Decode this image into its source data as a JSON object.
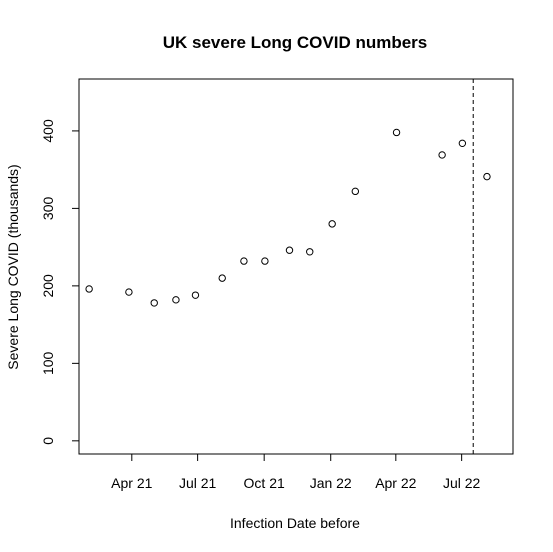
{
  "chart_data": {
    "type": "scatter",
    "title": "UK severe Long COVID numbers",
    "xlabel": "Infection Date before",
    "ylabel": "Severe Long COVID (thousands)",
    "x_tick_labels": [
      {
        "date": "2021-04-01",
        "label": "Apr 21"
      },
      {
        "date": "2021-07-01",
        "label": "Jul 21"
      },
      {
        "date": "2021-10-01",
        "label": "Oct 21"
      },
      {
        "date": "2022-01-01",
        "label": "Jan 22"
      },
      {
        "date": "2022-04-01",
        "label": "Apr 22"
      },
      {
        "date": "2022-07-01",
        "label": "Jul 22"
      }
    ],
    "y_ticks": [
      0,
      100,
      200,
      300,
      400
    ],
    "xlim": [
      "2021-01-18",
      "2022-09-10"
    ],
    "ylim": [
      -17,
      467
    ],
    "grid": false,
    "marker": "open-circle",
    "points": [
      {
        "x": "2021-02-01",
        "y": 196
      },
      {
        "x": "2021-03-28",
        "y": 192
      },
      {
        "x": "2021-05-02",
        "y": 178
      },
      {
        "x": "2021-06-01",
        "y": 182
      },
      {
        "x": "2021-06-28",
        "y": 188
      },
      {
        "x": "2021-08-04",
        "y": 210
      },
      {
        "x": "2021-09-03",
        "y": 232
      },
      {
        "x": "2021-10-02",
        "y": 232
      },
      {
        "x": "2021-11-05",
        "y": 246
      },
      {
        "x": "2021-12-03",
        "y": 244
      },
      {
        "x": "2022-01-03",
        "y": 280
      },
      {
        "x": "2022-02-04",
        "y": 322
      },
      {
        "x": "2022-04-02",
        "y": 398
      },
      {
        "x": "2022-06-04",
        "y": 369
      },
      {
        "x": "2022-07-02",
        "y": 384
      },
      {
        "x": "2022-08-05",
        "y": 341
      }
    ],
    "reference_line": {
      "x": "2022-07-17",
      "style": "dashed",
      "orientation": "vertical"
    }
  }
}
